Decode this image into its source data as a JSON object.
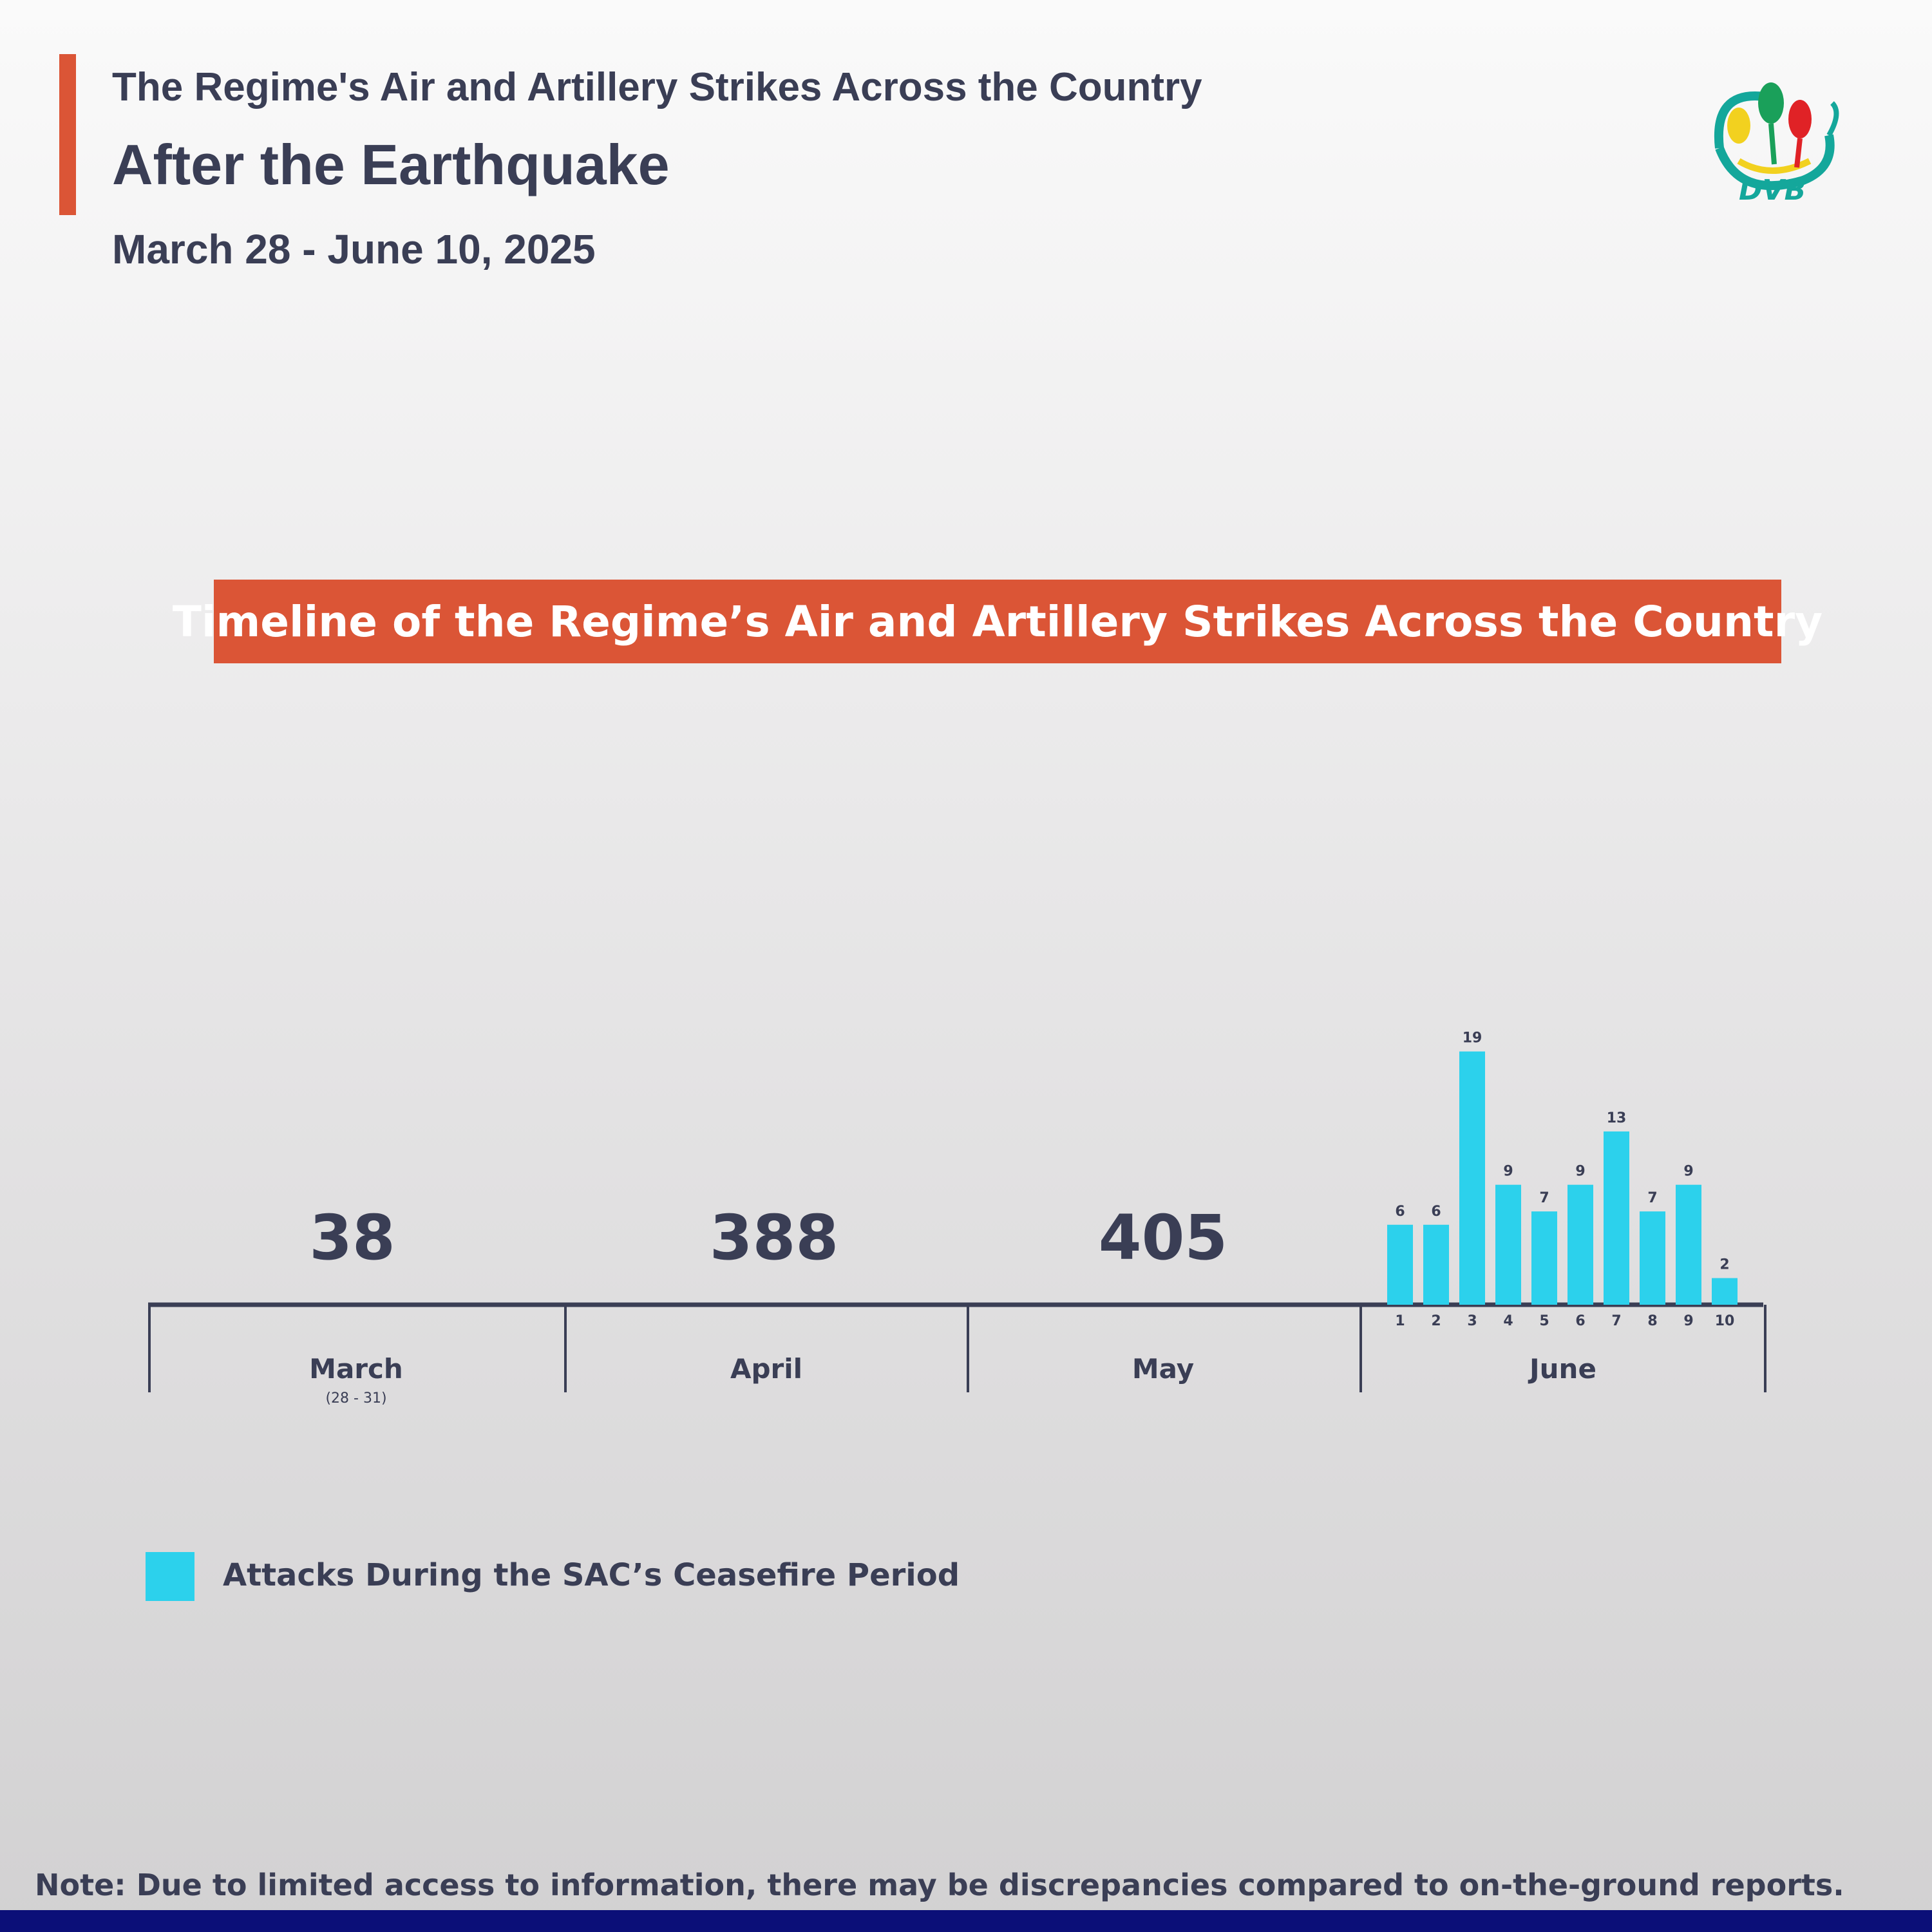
{
  "header": {
    "super_title": "The Regime's Air and Artillery Strikes Across the Country",
    "title": "After the Earthquake",
    "date_range": "March 28 - June 10, 2025",
    "logo_text": "DVB"
  },
  "colors": {
    "accent": "#db5536",
    "bar": "#2cd1ec",
    "text": "#3a3e55",
    "footer": "#0b0f78"
  },
  "chart_data": {
    "type": "bar",
    "title": "Timeline of the Regime’s Air and Artillery Strikes Across the Country",
    "monthly_totals": [
      {
        "month": "March",
        "sublabel": "(28 - 31)",
        "value": 38
      },
      {
        "month": "April",
        "sublabel": "",
        "value": 388
      },
      {
        "month": "May",
        "sublabel": "",
        "value": 405
      }
    ],
    "june": {
      "month": "June",
      "categories": [
        "1",
        "2",
        "3",
        "4",
        "5",
        "6",
        "7",
        "8",
        "9",
        "10"
      ],
      "values": [
        6,
        6,
        19,
        9,
        7,
        9,
        13,
        7,
        9,
        2
      ]
    },
    "legend": [
      {
        "label": "Attacks During the SAC’s Ceasefire Period",
        "color": "#2cd1ec"
      }
    ]
  },
  "note": "Note: Due to limited access to information, there may be discrepancies compared to on-the-ground reports."
}
